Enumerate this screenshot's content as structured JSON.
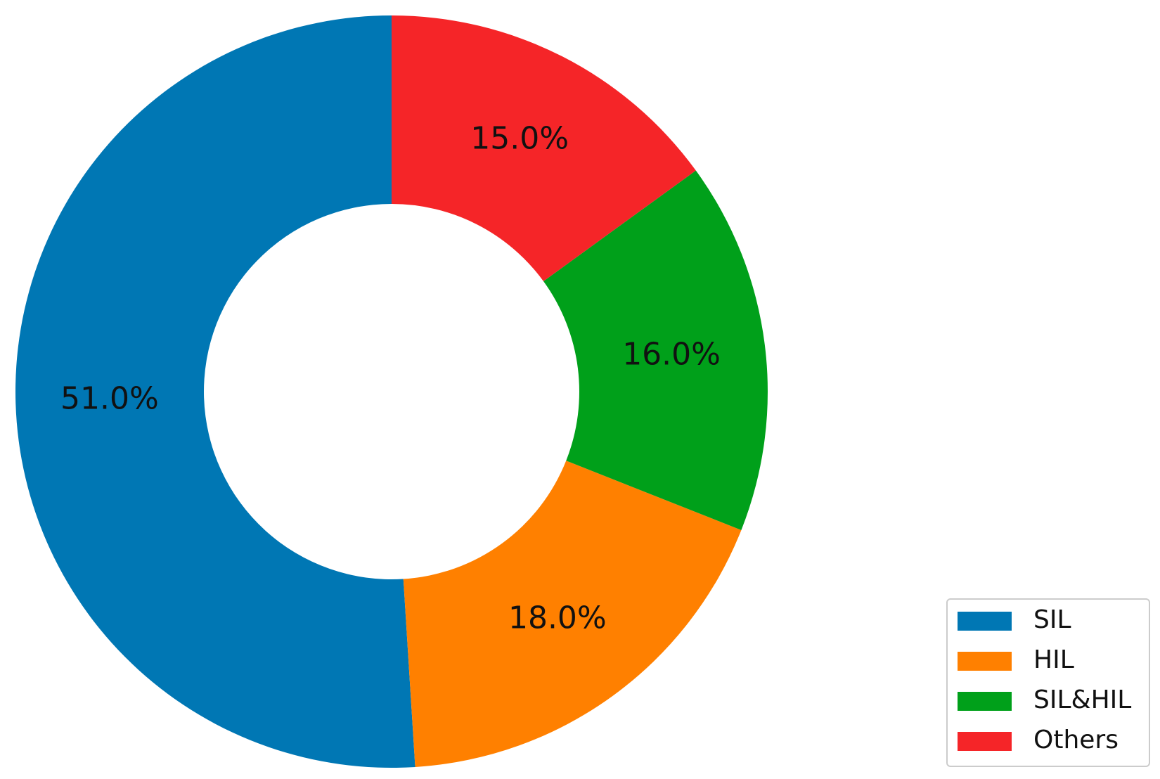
{
  "chart_data": {
    "type": "donut",
    "categories": [
      "SIL",
      "HIL",
      "SIL&HIL",
      "Others"
    ],
    "values": [
      51,
      18,
      16,
      15
    ],
    "value_labels": [
      "51.0%",
      "18.0%",
      "16.0%",
      "15.0%"
    ],
    "colors": [
      "#0077b4",
      "#ff8000",
      "#00a01a",
      "#f52528"
    ],
    "legend": "lower right"
  }
}
